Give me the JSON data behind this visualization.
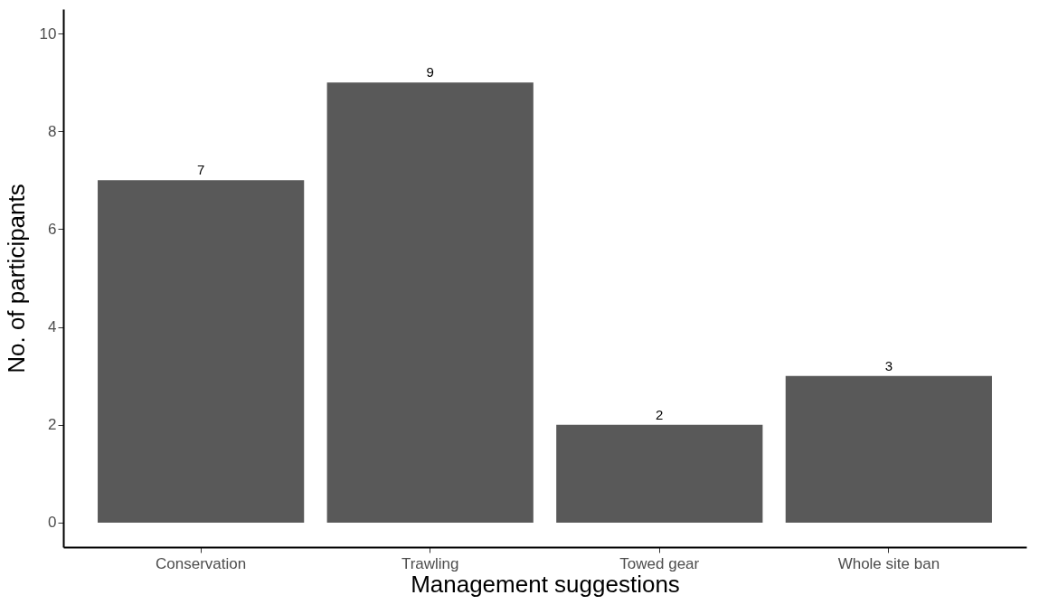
{
  "chart_data": {
    "type": "bar",
    "xlabel": "Management suggestions",
    "ylabel": "No. of participants",
    "categories": [
      "Conservation",
      "Trawling",
      "Towed gear",
      "Whole site ban"
    ],
    "values": [
      7,
      9,
      2,
      3
    ],
    "color": "#595959",
    "ylim": [
      -0.5,
      10.5
    ],
    "yticks": [
      0,
      2,
      4,
      6,
      8,
      10
    ],
    "data_labels": true
  }
}
